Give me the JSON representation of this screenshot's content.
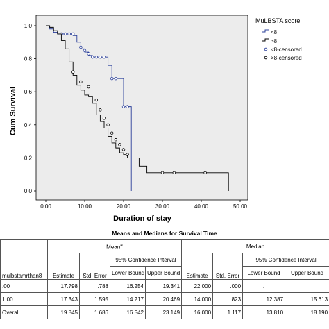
{
  "chart_data": {
    "type": "line",
    "title": "",
    "xlabel": "Duration of stay",
    "ylabel": "Cum Survival",
    "xlim": [
      0,
      50
    ],
    "ylim": [
      0,
      1.0
    ],
    "xticks": [
      "0.00",
      "10.00",
      "20.00",
      "30.00",
      "40.00",
      "50.00"
    ],
    "xtick_values": [
      0,
      10,
      20,
      30,
      40,
      50
    ],
    "yticks": [
      "0.0",
      "0.2",
      "0.4",
      "0.6",
      "0.8",
      "1.0"
    ],
    "ytick_values": [
      0,
      0.2,
      0.4,
      0.6,
      0.8,
      1.0
    ],
    "grid": false,
    "legend": {
      "title": "MuLBSTA score",
      "placement": "right",
      "entries": [
        "<8",
        ">8",
        "<8-censored",
        ">8-censored"
      ]
    },
    "series": [
      {
        "name": "<8",
        "color": "#2a3f9a",
        "steps": [
          [
            0,
            1.0
          ],
          [
            1,
            0.98
          ],
          [
            2,
            0.96
          ],
          [
            3,
            0.95
          ],
          [
            7,
            0.94
          ],
          [
            8,
            0.9
          ],
          [
            9,
            0.86
          ],
          [
            10,
            0.84
          ],
          [
            11,
            0.82
          ],
          [
            12,
            0.81
          ],
          [
            16,
            0.76
          ],
          [
            17,
            0.68
          ],
          [
            20,
            0.51
          ],
          [
            22,
            0.0
          ]
        ],
        "censored": [
          [
            4,
            0.95
          ],
          [
            5,
            0.95
          ],
          [
            6,
            0.95
          ],
          [
            7,
            0.95
          ],
          [
            9,
            0.87
          ],
          [
            10,
            0.85
          ],
          [
            11,
            0.83
          ],
          [
            12,
            0.81
          ],
          [
            13,
            0.81
          ],
          [
            14,
            0.81
          ],
          [
            15,
            0.81
          ],
          [
            17,
            0.68
          ],
          [
            18,
            0.68
          ],
          [
            20,
            0.51
          ],
          [
            21,
            0.51
          ]
        ]
      },
      {
        "name": ">8",
        "color": "#000000",
        "steps": [
          [
            0,
            1.0
          ],
          [
            1,
            0.99
          ],
          [
            2,
            0.97
          ],
          [
            3,
            0.95
          ],
          [
            4,
            0.91
          ],
          [
            5,
            0.86
          ],
          [
            6,
            0.78
          ],
          [
            7,
            0.7
          ],
          [
            8,
            0.64
          ],
          [
            9,
            0.61
          ],
          [
            10,
            0.58
          ],
          [
            11,
            0.57
          ],
          [
            12,
            0.53
          ],
          [
            13,
            0.46
          ],
          [
            14,
            0.42
          ],
          [
            15,
            0.38
          ],
          [
            16,
            0.33
          ],
          [
            17,
            0.29
          ],
          [
            18,
            0.26
          ],
          [
            19,
            0.23
          ],
          [
            20,
            0.22
          ],
          [
            21,
            0.2
          ],
          [
            24,
            0.15
          ],
          [
            26,
            0.11
          ],
          [
            47,
            0.0
          ]
        ],
        "censored": [
          [
            7,
            0.72
          ],
          [
            9,
            0.66
          ],
          [
            11,
            0.63
          ],
          [
            13,
            0.55
          ],
          [
            14,
            0.49
          ],
          [
            15,
            0.44
          ],
          [
            16,
            0.4
          ],
          [
            17,
            0.35
          ],
          [
            18,
            0.31
          ],
          [
            19,
            0.28
          ],
          [
            20,
            0.25
          ],
          [
            21,
            0.22
          ],
          [
            30,
            0.11
          ],
          [
            33,
            0.11
          ],
          [
            41,
            0.11
          ]
        ]
      }
    ]
  },
  "table": {
    "title": "Means and Medians for Survival Time",
    "header_mean": "Mean",
    "header_mean_sup": "a",
    "header_median": "Median",
    "header_ci": "95% Confidence Interval",
    "columns": [
      "mulbstamrthan8",
      "Estimate",
      "Std. Error",
      "Lower Bound",
      "Upper Bound",
      "Estimate",
      "Std. Error",
      "Lower Bound",
      "Upper Bound"
    ],
    "rows": [
      [
        ".00",
        "17.798",
        ".788",
        "16.254",
        "19.341",
        "22.000",
        ".000",
        ".",
        "."
      ],
      [
        "1.00",
        "17.343",
        "1.595",
        "14.217",
        "20.469",
        "14.000",
        ".823",
        "12.387",
        "15.613"
      ],
      [
        "Overall",
        "19.845",
        "1.686",
        "16.542",
        "23.149",
        "16.000",
        "1.117",
        "13.810",
        "18.190"
      ]
    ]
  }
}
